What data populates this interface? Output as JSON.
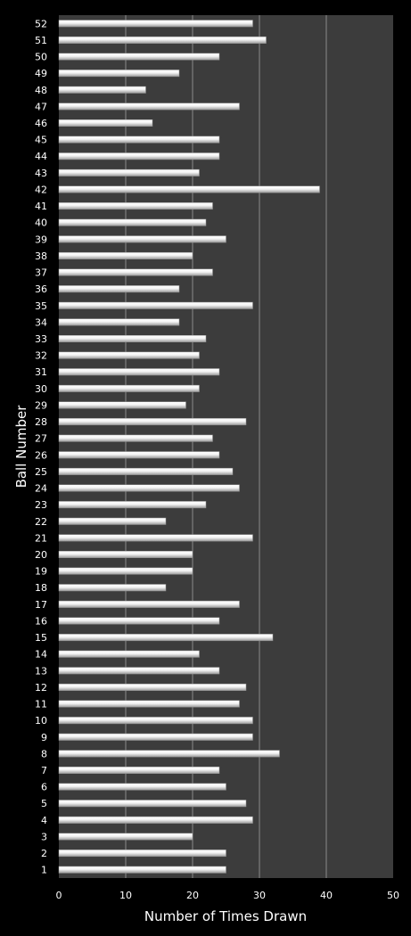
{
  "chart_data": {
    "type": "bar",
    "orientation": "horizontal",
    "xlabel": "Number of Times Drawn",
    "ylabel": "Ball Number",
    "xlim": [
      0,
      50
    ],
    "xticks": [
      "0",
      "10",
      "20",
      "30",
      "40",
      "50"
    ],
    "grid": true,
    "categories": [
      "1",
      "2",
      "3",
      "4",
      "5",
      "6",
      "7",
      "8",
      "9",
      "10",
      "11",
      "12",
      "13",
      "14",
      "15",
      "16",
      "17",
      "18",
      "19",
      "20",
      "21",
      "22",
      "23",
      "24",
      "25",
      "26",
      "27",
      "28",
      "29",
      "30",
      "31",
      "32",
      "33",
      "34",
      "35",
      "36",
      "37",
      "38",
      "39",
      "40",
      "41",
      "42",
      "43",
      "44",
      "45",
      "46",
      "47",
      "48",
      "49",
      "50",
      "51",
      "52"
    ],
    "values": [
      25,
      25,
      20,
      29,
      28,
      25,
      24,
      33,
      29,
      29,
      27,
      28,
      24,
      21,
      32,
      24,
      27,
      16,
      20,
      20,
      29,
      16,
      22,
      27,
      26,
      24,
      23,
      28,
      19,
      21,
      24,
      21,
      22,
      18,
      29,
      18,
      23,
      20,
      25,
      22,
      23,
      39,
      21,
      24,
      24,
      14,
      27,
      13,
      18,
      24,
      31,
      29
    ],
    "colors": {
      "background": "#000000",
      "plot_area": "#3c3c3c",
      "gridline": "#8a8a8a",
      "bar_light": "#ffffff",
      "bar_dark": "#9a9a9a",
      "text": "#ffffff"
    }
  }
}
